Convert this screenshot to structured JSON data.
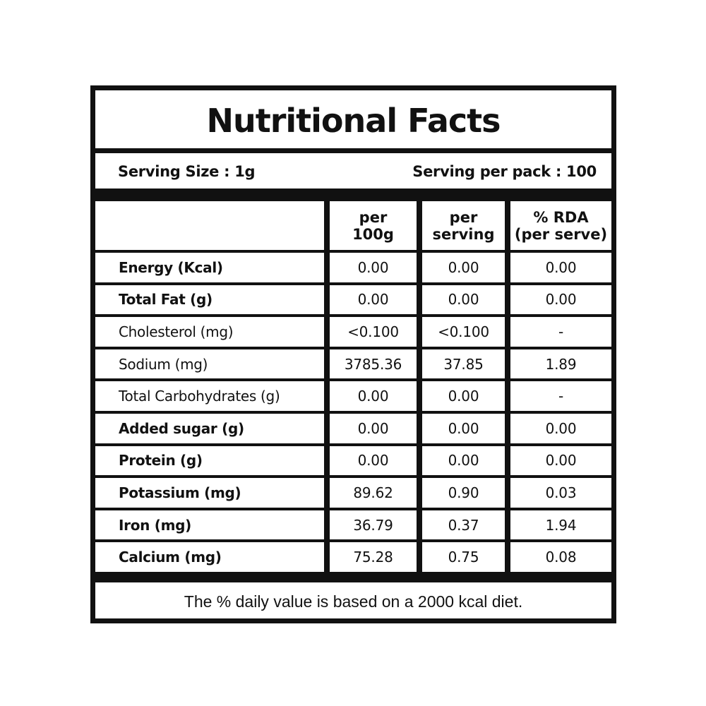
{
  "title": "Nutritional Facts",
  "serving": {
    "size": "Serving Size : 1g",
    "per_pack": "Serving per pack : 100"
  },
  "table": {
    "headers": [
      {
        "line1": "",
        "line2": ""
      },
      {
        "line1": "per",
        "line2": "100g"
      },
      {
        "line1": "per",
        "line2": "serving"
      },
      {
        "line1": "% RDA",
        "line2": "(per serve)"
      }
    ],
    "rows": [
      {
        "name": "Energy (Kcal)",
        "per100g": "0.00",
        "perServing": "0.00",
        "rda": "0.00"
      },
      {
        "name": "Total Fat (g)",
        "per100g": "0.00",
        "perServing": "0.00",
        "rda": "0.00"
      },
      {
        "name": "Cholesterol (mg)",
        "per100g": "<0.100",
        "perServing": "<0.100",
        "rda": "-"
      },
      {
        "name": "Sodium (mg)",
        "per100g": "3785.36",
        "perServing": "37.85",
        "rda": "1.89"
      },
      {
        "name": "Total Carbohydrates (g)",
        "per100g": "0.00",
        "perServing": "0.00",
        "rda": "-"
      },
      {
        "name": "Added sugar (g)",
        "per100g": "0.00",
        "perServing": "0.00",
        "rda": "0.00"
      },
      {
        "name": "Protein (g)",
        "per100g": "0.00",
        "perServing": "0.00",
        "rda": "0.00"
      },
      {
        "name": "Potassium (mg)",
        "per100g": "89.62",
        "perServing": "0.90",
        "rda": "0.03"
      },
      {
        "name": "Iron (mg)",
        "per100g": "36.79",
        "perServing": "0.37",
        "rda": "1.94"
      },
      {
        "name": "Calcium (mg)",
        "per100g": "75.28",
        "perServing": "0.75",
        "rda": "0.08"
      }
    ]
  },
  "footer": "The % daily value is based on a 2000 kcal diet."
}
